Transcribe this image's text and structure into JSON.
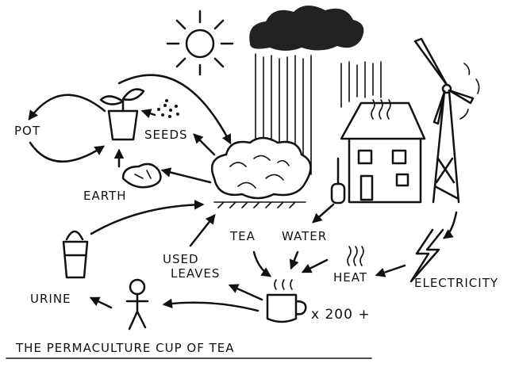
{
  "title": "THE PERMACULTURE CUP OF TEA",
  "nodes": [
    {
      "label": "POT"
    },
    {
      "label": "SEEDS"
    },
    {
      "label": "EARTH"
    },
    {
      "label": "URINE"
    },
    {
      "lines": [
        "USED",
        "LEAVES"
      ]
    },
    {
      "label": "TEA"
    },
    {
      "label": "WATER"
    },
    {
      "label": "HEAT"
    },
    {
      "label": "ELECTRICITY"
    },
    {
      "label": "x 200 +"
    }
  ]
}
